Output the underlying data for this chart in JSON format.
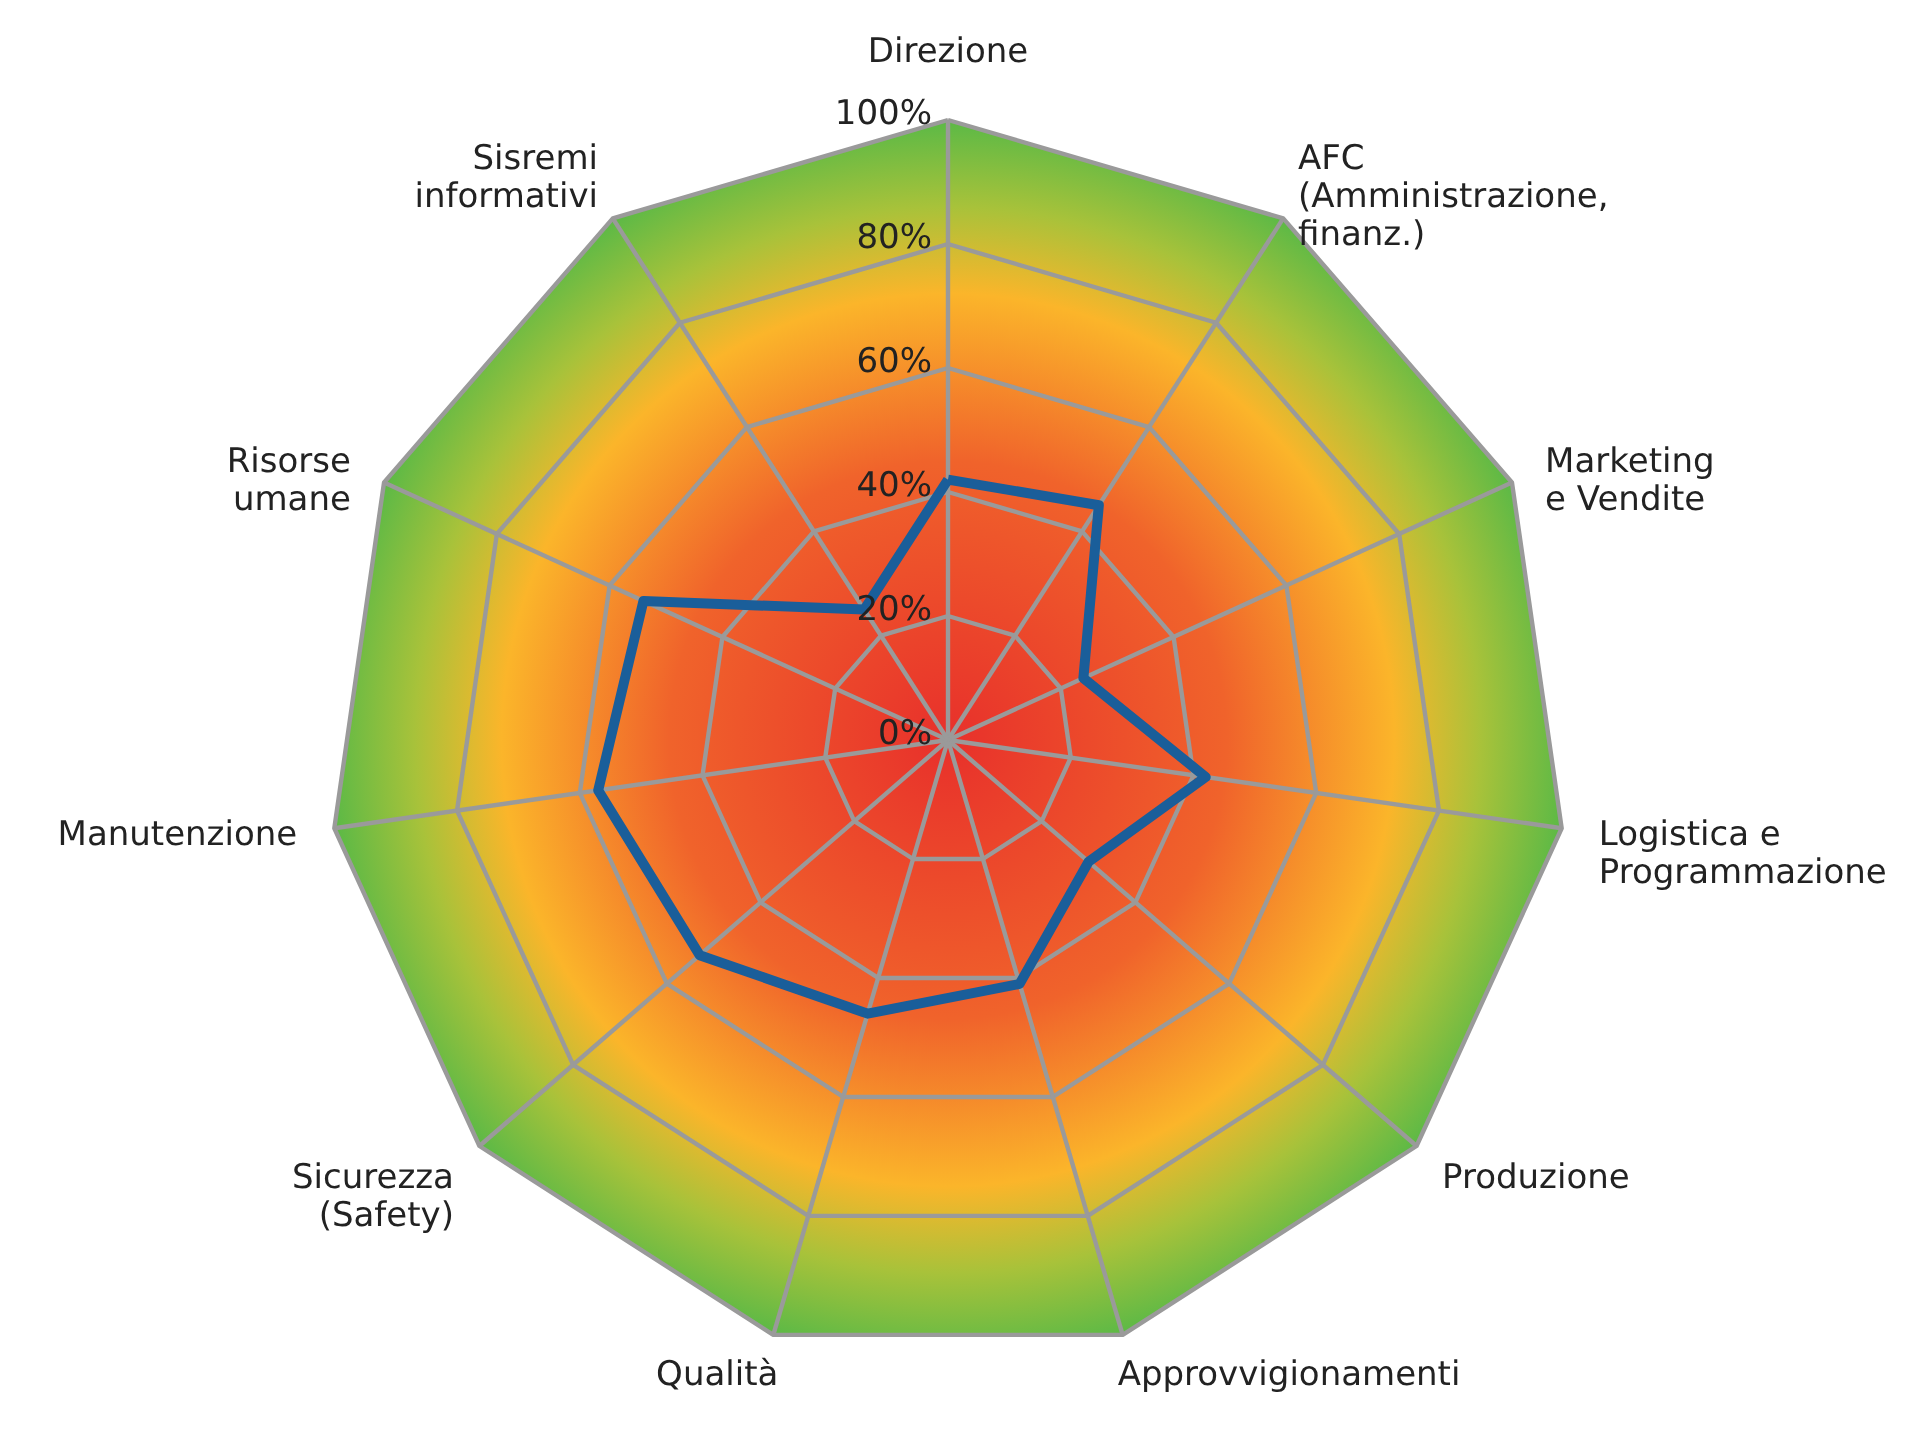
{
  "chart_data": {
    "type": "radar",
    "categories": [
      "Direzione",
      "AFC\n(Amministrazione,\nfinanz.)",
      "Marketing\ne Vendite",
      "Logistica e\nProgrammazione",
      "Produzione",
      "Approvvigionamenti",
      "Qualità",
      "Sicurezza\n(Safety)",
      "Manutenzione",
      "Risorse\numane",
      "Sisremi\ninformativi"
    ],
    "series": [
      {
        "color": "#1a5e9a",
        "values": [
          42,
          45,
          24,
          42,
          30,
          41,
          46,
          53,
          57,
          54,
          25
        ]
      }
    ],
    "ylim": [
      0,
      100
    ],
    "yticks": [
      {
        "value": 0,
        "label": "0%"
      },
      {
        "value": 20,
        "label": "20%"
      },
      {
        "value": 40,
        "label": "40%"
      },
      {
        "value": 60,
        "label": "60%"
      },
      {
        "value": 80,
        "label": "80%"
      },
      {
        "value": 100,
        "label": "100%"
      }
    ],
    "grid": true
  }
}
